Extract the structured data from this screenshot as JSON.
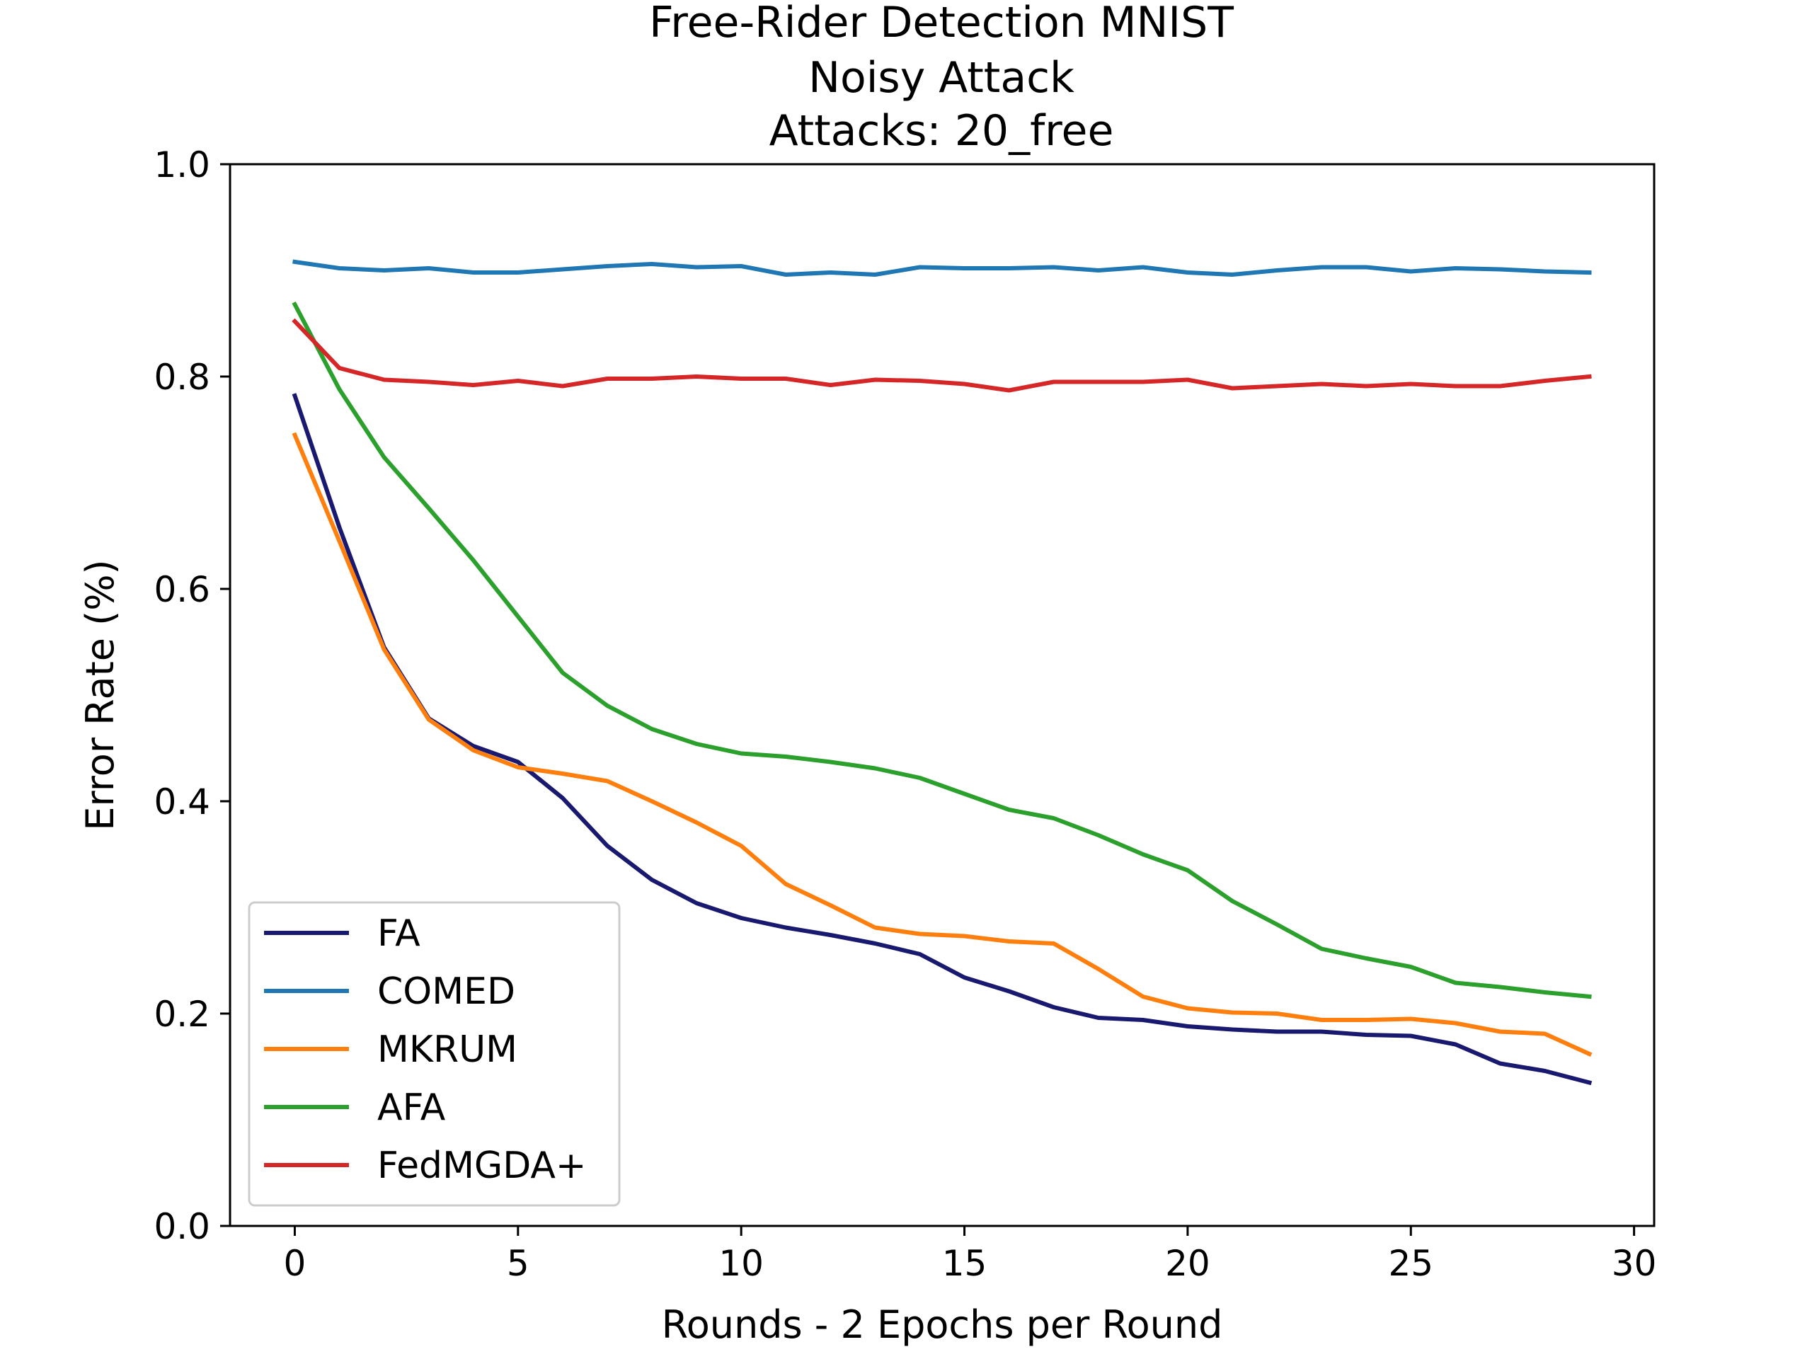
{
  "chart_data": {
    "type": "line",
    "title_lines": [
      "Free-Rider Detection MNIST",
      "Noisy Attack",
      "Attacks: 20_free"
    ],
    "xlabel": "Rounds - 2 Epochs per Round",
    "ylabel": "Error Rate (%)",
    "xlim": [
      -1.45,
      30.45
    ],
    "ylim": [
      0.0,
      1.0
    ],
    "xticks": [
      0,
      5,
      10,
      15,
      20,
      25,
      30
    ],
    "xtick_labels": [
      "0",
      "5",
      "10",
      "15",
      "20",
      "25",
      "30"
    ],
    "yticks": [
      0.0,
      0.2,
      0.4,
      0.6,
      0.8,
      1.0
    ],
    "ytick_labels": [
      "0.0",
      "0.2",
      "0.4",
      "0.6",
      "0.8",
      "1.0"
    ],
    "grid": false,
    "legend_position": "lower-left",
    "x": [
      0,
      1,
      2,
      3,
      4,
      5,
      6,
      7,
      8,
      9,
      10,
      11,
      12,
      13,
      14,
      15,
      16,
      17,
      18,
      19,
      20,
      21,
      22,
      23,
      24,
      25,
      26,
      27,
      28,
      29
    ],
    "series": [
      {
        "name": "FA",
        "color": "#191970",
        "values": [
          0.782,
          0.658,
          0.545,
          0.478,
          0.452,
          0.437,
          0.403,
          0.358,
          0.326,
          0.304,
          0.29,
          0.281,
          0.274,
          0.266,
          0.256,
          0.234,
          0.221,
          0.206,
          0.196,
          0.194,
          0.188,
          0.185,
          0.183,
          0.183,
          0.18,
          0.179,
          0.171,
          0.153,
          0.146,
          0.135
        ]
      },
      {
        "name": "COMED",
        "color": "#1f77b4",
        "values": [
          0.908,
          0.902,
          0.9,
          0.902,
          0.898,
          0.898,
          0.901,
          0.904,
          0.906,
          0.903,
          0.904,
          0.896,
          0.898,
          0.896,
          0.903,
          0.902,
          0.902,
          0.903,
          0.9,
          0.903,
          0.898,
          0.896,
          0.9,
          0.903,
          0.903,
          0.899,
          0.902,
          0.901,
          0.899,
          0.898
        ]
      },
      {
        "name": "MKRUM",
        "color": "#ff7f0e",
        "values": [
          0.745,
          0.645,
          0.543,
          0.477,
          0.448,
          0.432,
          0.426,
          0.419,
          0.4,
          0.38,
          0.358,
          0.322,
          0.302,
          0.281,
          0.275,
          0.273,
          0.268,
          0.266,
          0.242,
          0.216,
          0.205,
          0.201,
          0.2,
          0.194,
          0.194,
          0.195,
          0.191,
          0.183,
          0.181,
          0.162
        ]
      },
      {
        "name": "AFA",
        "color": "#2ca02c",
        "values": [
          0.868,
          0.788,
          0.724,
          0.676,
          0.627,
          0.574,
          0.521,
          0.49,
          0.468,
          0.454,
          0.445,
          0.442,
          0.437,
          0.431,
          0.422,
          0.407,
          0.392,
          0.384,
          0.368,
          0.35,
          0.335,
          0.306,
          0.284,
          0.261,
          0.252,
          0.244,
          0.229,
          0.225,
          0.22,
          0.216
        ]
      },
      {
        "name": "FedMGDA+",
        "color": "#d62728",
        "values": [
          0.852,
          0.808,
          0.797,
          0.795,
          0.792,
          0.796,
          0.791,
          0.798,
          0.798,
          0.8,
          0.798,
          0.798,
          0.792,
          0.797,
          0.796,
          0.793,
          0.787,
          0.795,
          0.795,
          0.795,
          0.797,
          0.789,
          0.791,
          0.793,
          0.791,
          0.793,
          0.791,
          0.791,
          0.796,
          0.8
        ]
      }
    ]
  }
}
